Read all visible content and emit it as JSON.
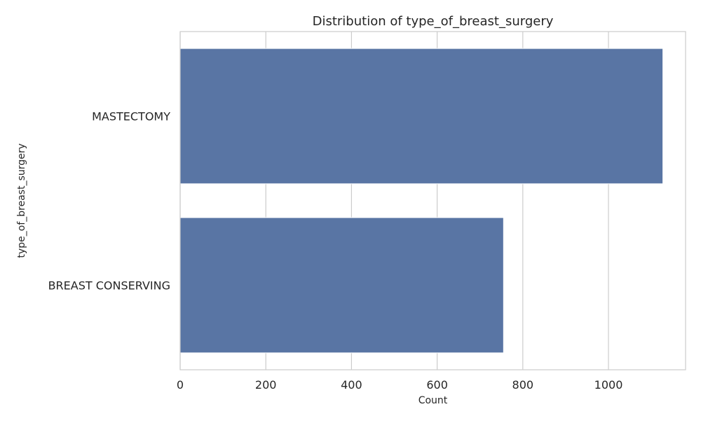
{
  "chart_data": {
    "type": "bar",
    "orientation": "horizontal",
    "title": "Distribution of type_of_breast_surgery",
    "xlabel": "Count",
    "ylabel": "type_of_breast_surgery",
    "categories": [
      "MASTECTOMY",
      "BREAST CONSERVING"
    ],
    "values": [
      1127,
      755
    ],
    "xlim": [
      0,
      1180
    ],
    "xticks": [
      0,
      200,
      400,
      600,
      800,
      1000
    ],
    "grid": "vertical",
    "legend": "none",
    "colors": {
      "bar": "#5975a4",
      "grid": "#cccccc",
      "text": "#262626",
      "background": "#ffffff"
    }
  }
}
